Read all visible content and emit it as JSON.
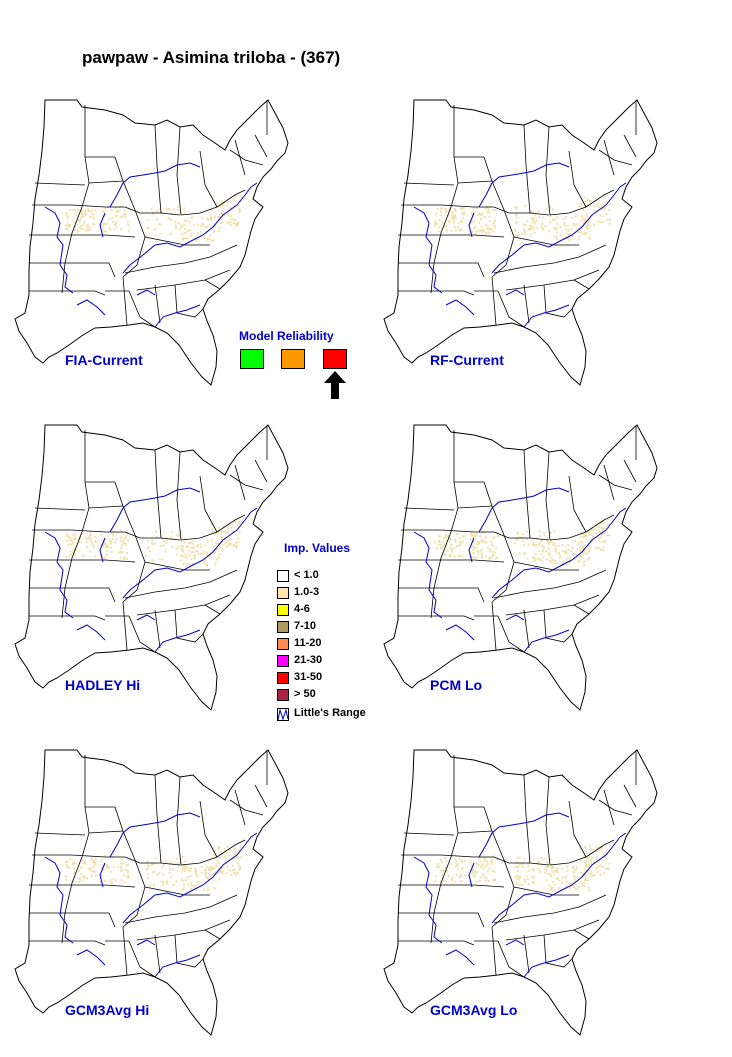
{
  "title": "pawpaw - Asimina triloba - (367)",
  "panels": [
    {
      "label": "FIA-Current"
    },
    {
      "label": "RF-Current"
    },
    {
      "label": "HADLEY Hi"
    },
    {
      "label": "PCM Lo"
    },
    {
      "label": "GCM3Avg Hi"
    },
    {
      "label": "GCM3Avg Lo"
    }
  ],
  "model_reliability": {
    "title": "Model Reliability",
    "boxes": [
      {
        "name": "high",
        "color": "#00ff00"
      },
      {
        "name": "medium",
        "color": "#ff9900"
      },
      {
        "name": "low",
        "color": "#ff0000"
      }
    ],
    "selected_index": 2
  },
  "legend": {
    "title": "Imp. Values",
    "items": [
      {
        "label": "< 1.0",
        "color": "#ffffff"
      },
      {
        "label": "1.0-3",
        "color": "#ffe4b0"
      },
      {
        "label": "4-6",
        "color": "#ffff00"
      },
      {
        "label": "7-10",
        "color": "#b09a60"
      },
      {
        "label": "11-20",
        "color": "#ff8c50"
      },
      {
        "label": "21-30",
        "color": "#ff00ff"
      },
      {
        "label": "31-50",
        "color": "#ff0000"
      },
      {
        "label": "> 50",
        "color": "#aa2244"
      }
    ],
    "range_label": "Little's Range"
  },
  "colors": {
    "state_lines": "#000000",
    "range_line": "#0000cc",
    "habitat": "#f0e0a8",
    "label": "#0000cc"
  }
}
